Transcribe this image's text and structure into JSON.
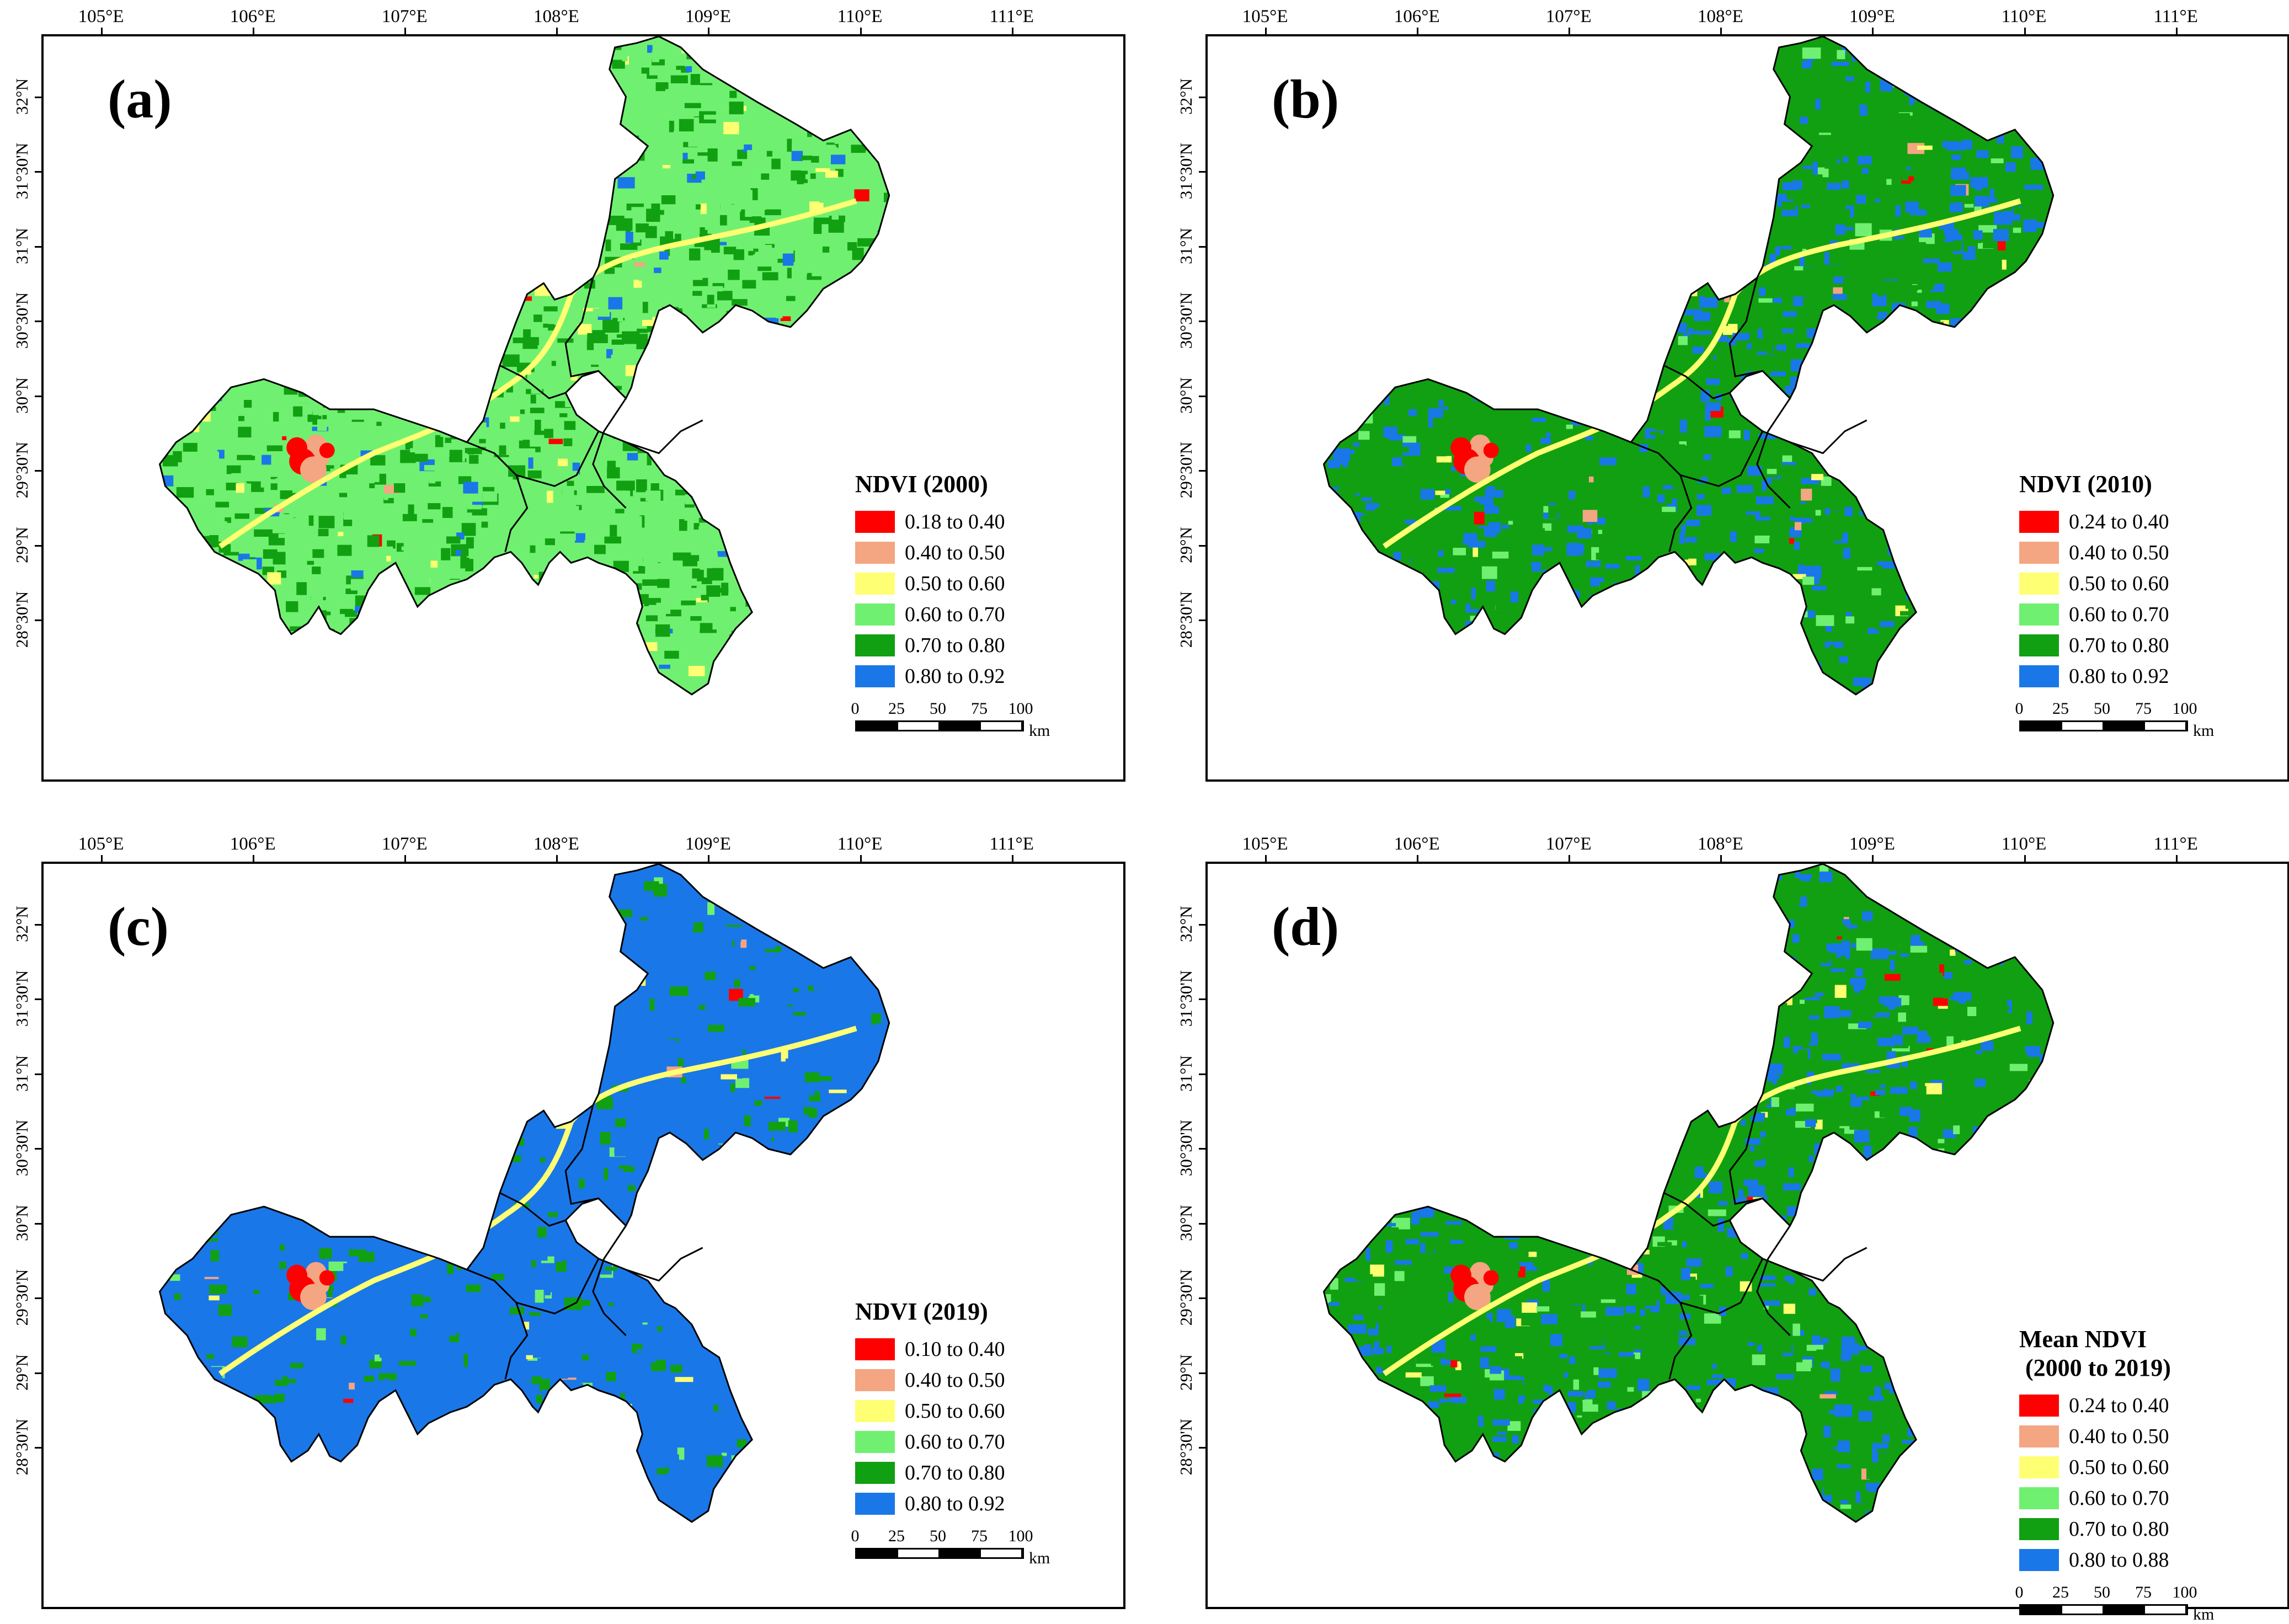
{
  "axes": {
    "lon_ticks": [
      "105°E",
      "106°E",
      "107°E",
      "108°E",
      "109°E",
      "110°E",
      "111°E"
    ],
    "lat_ticks": [
      "32°N",
      "31°30'N",
      "31°N",
      "30°30'N",
      "30°N",
      "29°30'N",
      "29°N",
      "28°30'N"
    ]
  },
  "colors": {
    "red": "#ff0000",
    "salmon": "#f4a582",
    "yellow": "#ffff73",
    "light_green": "#70f070",
    "green": "#11a011",
    "blue": "#1a77e8",
    "boundary": "#000000"
  },
  "scale_bar": {
    "ticks": [
      "0",
      "25",
      "50",
      "75",
      "100"
    ],
    "unit": "km"
  },
  "panels": [
    {
      "label": "(a)",
      "legend_title": "NDVI (2000)",
      "dominant": "light_green",
      "classes": [
        "0.18 to 0.40",
        "0.40 to 0.50",
        "0.50 to 0.60",
        "0.60 to 0.70",
        "0.70 to 0.80",
        "0.80 to 0.92"
      ]
    },
    {
      "label": "(b)",
      "legend_title": "NDVI (2010)",
      "dominant": "green",
      "classes": [
        "0.24 to 0.40",
        "0.40 to 0.50",
        "0.50 to 0.60",
        "0.60 to 0.70",
        "0.70 to 0.80",
        "0.80 to 0.92"
      ]
    },
    {
      "label": "(c)",
      "legend_title": "NDVI (2019)",
      "dominant": "blue",
      "classes": [
        "0.10 to 0.40",
        "0.40 to 0.50",
        "0.50 to 0.60",
        "0.60 to 0.70",
        "0.70 to 0.80",
        "0.80 to 0.92"
      ]
    },
    {
      "label": "(d)",
      "legend_title": "Mean NDVI\n (2000 to 2019)",
      "dominant": "green",
      "classes": [
        "0.24 to 0.40",
        "0.40 to 0.50",
        "0.50 to 0.60",
        "0.60 to 0.70",
        "0.70 to 0.80",
        "0.80 to 0.88"
      ]
    }
  ]
}
